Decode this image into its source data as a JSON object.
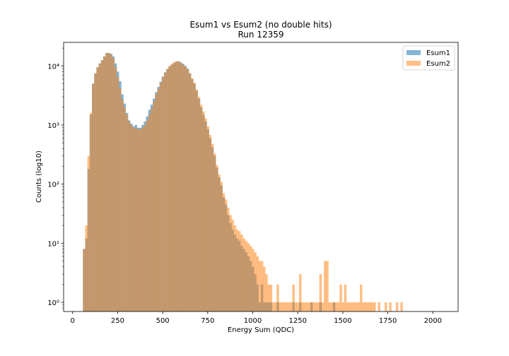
{
  "chart_data": {
    "type": "histogram",
    "title": "Esum1 vs Esum2 (no double hits)",
    "subtitle": "Run 12359",
    "xlabel": "Energy Sum (QDC)",
    "ylabel": "Counts (log10)",
    "xlim": [
      -50,
      2140
    ],
    "ylim": [
      0.7,
      25000
    ],
    "yscale": "log",
    "x_ticks": [
      0,
      250,
      500,
      750,
      1000,
      1250,
      1500,
      1750,
      2000
    ],
    "y_ticks": [
      {
        "value": 1,
        "label": "10⁰"
      },
      {
        "value": 10,
        "label": "10¹"
      },
      {
        "value": 100,
        "label": "10²"
      },
      {
        "value": 1000,
        "label": "10³"
      },
      {
        "value": 10000,
        "label": "10⁴"
      }
    ],
    "legend_position": "top-right",
    "bin_edges_start": 57,
    "bin_width": 12.5,
    "series": [
      {
        "name": "Esum1",
        "color": "#1f77b4",
        "alpha": 0.55,
        "counts": [
          8,
          12,
          180,
          1500,
          5000,
          7500,
          9500,
          11000,
          12500,
          14500,
          16500,
          16500,
          16000,
          14500,
          11000,
          8000,
          5500,
          3300,
          2300,
          1600,
          1200,
          1050,
          950,
          1000,
          900,
          900,
          1000,
          1150,
          1400,
          1800,
          2200,
          2800,
          3600,
          4400,
          5400,
          6600,
          7800,
          8800,
          9800,
          10500,
          11200,
          11800,
          12000,
          11500,
          10800,
          10000,
          9000,
          7500,
          6000,
          5000,
          3800,
          2800,
          2000,
          1500,
          1150,
          850,
          600,
          420,
          300,
          190,
          130,
          95,
          60,
          45,
          30,
          22,
          17,
          14,
          12,
          11,
          9,
          8,
          7,
          6,
          5,
          4,
          3,
          2,
          1,
          2,
          1,
          1,
          1,
          1,
          0,
          0,
          1,
          0,
          0,
          0,
          0,
          0,
          0,
          1,
          0,
          0,
          1,
          0,
          0,
          0,
          0,
          1,
          0,
          0,
          0,
          1,
          0,
          0,
          0,
          0,
          0,
          1,
          0,
          0,
          0,
          0,
          0,
          0,
          0,
          0,
          0,
          0,
          0,
          0,
          0,
          0,
          0,
          0,
          0,
          0,
          0,
          0,
          0,
          0,
          0,
          0,
          0,
          0,
          0,
          0,
          0,
          0,
          0,
          0,
          0,
          0,
          0,
          0,
          0,
          0,
          0,
          0,
          0,
          0,
          0,
          0,
          0,
          0,
          0
        ]
      },
      {
        "name": "Esum2",
        "color": "#ff7f0e",
        "alpha": 0.5,
        "counts": [
          8,
          20,
          300,
          1600,
          5000,
          7500,
          9500,
          11000,
          12500,
          14500,
          16500,
          16500,
          15500,
          13500,
          9500,
          6500,
          4200,
          2700,
          2000,
          1500,
          1150,
          1000,
          900,
          900,
          850,
          850,
          900,
          1000,
          1200,
          1500,
          1900,
          2500,
          3300,
          4100,
          5200,
          6500,
          7700,
          8900,
          10000,
          10800,
          11500,
          12000,
          12000,
          11200,
          10500,
          9800,
          8800,
          7500,
          6200,
          5200,
          4000,
          3000,
          2200,
          1700,
          1300,
          950,
          680,
          480,
          330,
          210,
          145,
          110,
          70,
          55,
          40,
          30,
          25,
          20,
          17,
          16,
          14,
          12,
          11,
          10,
          9,
          8,
          7,
          6,
          5,
          5,
          4,
          3,
          2,
          2,
          1,
          1,
          2,
          1,
          1,
          1,
          1,
          1,
          1,
          2,
          1,
          1,
          3,
          1,
          1,
          1,
          1,
          1,
          1,
          1,
          1,
          3,
          1,
          5,
          5,
          1,
          1,
          1,
          1,
          1,
          2,
          1,
          2,
          1,
          1,
          1,
          1,
          1,
          1,
          2,
          1,
          1,
          1,
          1,
          1,
          1,
          0,
          1,
          0,
          0,
          1,
          0,
          1,
          0,
          0,
          1,
          0,
          1,
          0,
          0,
          0,
          0,
          0,
          0,
          0,
          0,
          0,
          0,
          0,
          0,
          0
        ]
      }
    ]
  }
}
